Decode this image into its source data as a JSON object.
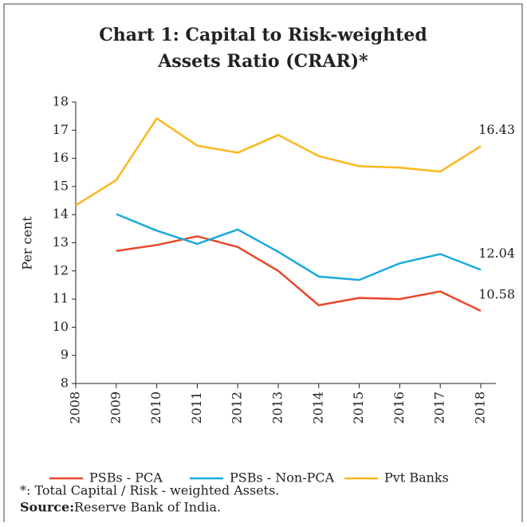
{
  "chart_data": {
    "type": "line",
    "title_lines": [
      "Chart 1: Capital to Risk-weighted",
      "Assets Ratio (CRAR)*"
    ],
    "y_label": "Per cent",
    "categories": [
      "2008",
      "2009",
      "2010",
      "2011",
      "2012",
      "2013",
      "2014",
      "2015",
      "2016",
      "2017",
      "2018"
    ],
    "series": [
      {
        "name": "PSBs - PCA",
        "color": "#e8482a",
        "values": [
          null,
          12.71,
          12.92,
          13.23,
          12.85,
          12.0,
          10.78,
          11.04,
          11.0,
          11.27,
          10.58
        ]
      },
      {
        "name": "PSBs - Non-PCA",
        "color": "#1ba9de",
        "values": [
          null,
          14.02,
          13.43,
          12.96,
          13.47,
          12.68,
          11.8,
          11.68,
          12.27,
          12.6,
          12.04
        ]
      },
      {
        "name": "Pvt Banks",
        "color": "#f9b81b",
        "values": [
          14.33,
          15.23,
          17.42,
          16.45,
          16.2,
          16.83,
          16.08,
          15.72,
          15.67,
          15.53,
          16.43
        ]
      }
    ],
    "ylim": [
      8,
      18
    ],
    "yticks": [
      8,
      9,
      10,
      11,
      12,
      13,
      14,
      15,
      16,
      17,
      18
    ],
    "footnote": "*: Total Capital / Risk - weighted Assets.",
    "source_label": "Source:",
    "source_text": "Reserve Bank of India."
  }
}
